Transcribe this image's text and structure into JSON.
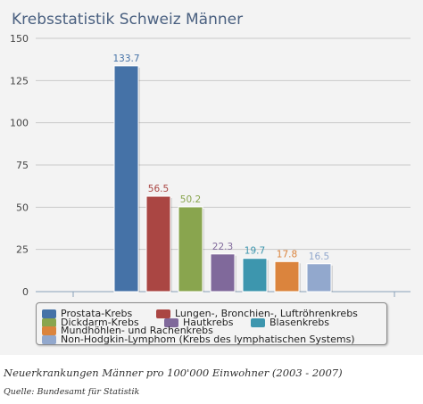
{
  "chart_data": {
    "type": "bar",
    "title": "Krebsstatistik Schweiz Männer",
    "xlabel": "",
    "ylabel": "",
    "ylim": [
      0,
      150
    ],
    "yticks": [
      0,
      25,
      50,
      75,
      100,
      125,
      150
    ],
    "grid": true,
    "legend_position": "bottom",
    "series": [
      {
        "name": "Prostata-Krebs",
        "value": 133.7,
        "label": "133.7",
        "color": "#4572a7"
      },
      {
        "name": "Lungen-, Bronchien-, Luftröhrenkrebs",
        "value": 56.5,
        "label": "56.5",
        "color": "#aa4643"
      },
      {
        "name": "Dickdarm-Krebs",
        "value": 50.2,
        "label": "50.2",
        "color": "#89a54e"
      },
      {
        "name": "Hautkrebs",
        "value": 22.3,
        "label": "22.3",
        "color": "#80699b"
      },
      {
        "name": "Blasenkrebs",
        "value": 19.7,
        "label": "19.7",
        "color": "#3d96ae"
      },
      {
        "name": "Mundhöhlen- und Rachenkrebs",
        "value": 17.8,
        "label": "17.8",
        "color": "#db843d"
      },
      {
        "name": "Non-Hodgkin-Lymphom (Krebs des lymphatischen Systems)",
        "value": 16.5,
        "label": "16.5",
        "color": "#92a8cd"
      }
    ]
  },
  "caption": "Neuerkrankungen Männer pro 100'000 Einwohner (2003 - 2007)",
  "source": "Quelle: Bundesamt für Statistik"
}
